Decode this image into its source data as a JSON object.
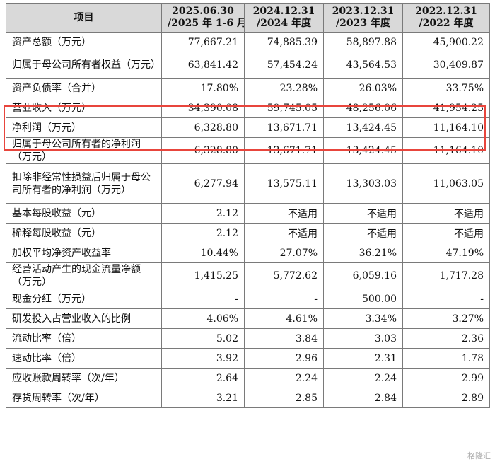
{
  "header": {
    "item": "项目",
    "periods": [
      {
        "line1": "2025.06.30",
        "line2": "/2025 年 1-6 月"
      },
      {
        "line1": "2024.12.31",
        "line2": "/2024 年度"
      },
      {
        "line1": "2023.12.31",
        "line2": "/2023 年度"
      },
      {
        "line1": "2022.12.31",
        "line2": "/2022 年度"
      }
    ]
  },
  "rows": [
    {
      "label": "资产总额（万元）",
      "values": [
        "77,667.21",
        "74,885.39",
        "58,897.88",
        "45,900.22"
      ]
    },
    {
      "label": "归属于母公司所有者权益（万元）",
      "values": [
        "63,841.42",
        "57,454.24",
        "43,564.53",
        "30,409.87"
      ]
    },
    {
      "label": "资产负债率（合并）",
      "values": [
        "17.80%",
        "23.28%",
        "26.03%",
        "33.75%"
      ]
    },
    {
      "label": "营业收入（万元）",
      "values": [
        "34,390.08",
        "59,745.05",
        "48,256.06",
        "41,954.25"
      ]
    },
    {
      "label": "净利润（万元）",
      "values": [
        "6,328.80",
        "13,671.71",
        "13,424.45",
        "11,164.10"
      ]
    },
    {
      "label": "归属于母公司所有者的净利润（万元）",
      "values": [
        "6,328.80",
        "13,671.71",
        "13,424.45",
        "11,164.10"
      ]
    },
    {
      "label": "扣除非经常性损益后归属于母公司所有者的净利润（万元）",
      "values": [
        "6,277.94",
        "13,575.11",
        "13,303.03",
        "11,063.05"
      ]
    },
    {
      "label": "基本每股收益（元）",
      "values": [
        "2.12",
        "不适用",
        "不适用",
        "不适用"
      ]
    },
    {
      "label": "稀释每股收益（元）",
      "values": [
        "2.12",
        "不适用",
        "不适用",
        "不适用"
      ]
    },
    {
      "label": "加权平均净资产收益率",
      "values": [
        "10.44%",
        "27.07%",
        "36.21%",
        "47.19%"
      ]
    },
    {
      "label": "经营活动产生的现金流量净额（万元）",
      "values": [
        "1,415.25",
        "5,772.62",
        "6,059.16",
        "1,717.28"
      ]
    },
    {
      "label": "现金分红（万元）",
      "values": [
        "-",
        "-",
        "500.00",
        "-"
      ]
    },
    {
      "label": "研发投入占营业收入的比例",
      "values": [
        "4.06%",
        "4.61%",
        "3.34%",
        "3.27%"
      ]
    },
    {
      "label": "流动比率（倍）",
      "values": [
        "5.02",
        "3.84",
        "3.03",
        "2.36"
      ]
    },
    {
      "label": "速动比率（倍）",
      "values": [
        "3.92",
        "2.96",
        "2.31",
        "1.78"
      ]
    },
    {
      "label": "应收账款周转率（次/年）",
      "values": [
        "2.64",
        "2.24",
        "2.24",
        "2.99"
      ]
    },
    {
      "label": "存货周转率（次/年）",
      "values": [
        "3.21",
        "2.85",
        "2.84",
        "2.89"
      ]
    }
  ],
  "highlight_color": "#e8453c",
  "watermark": "格隆汇"
}
